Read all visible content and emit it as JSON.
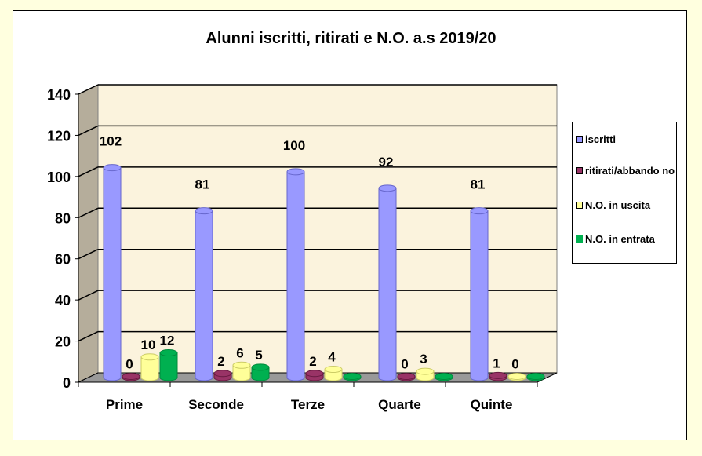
{
  "chart_data": {
    "type": "bar",
    "title": "Alunni  iscritti,  ritirati e N.O. a.s 2019/20",
    "categories": [
      "Prime",
      "Seconde",
      "Terze",
      "Quarte",
      "Quinte"
    ],
    "series": [
      {
        "name": "iscritti",
        "color": "#9999ff",
        "values": [
          102,
          81,
          100,
          92,
          81
        ],
        "labels": [
          "102",
          "81",
          "100",
          "92",
          "81"
        ]
      },
      {
        "name": "ritirati/abbandono",
        "color": "#993366",
        "values": [
          0,
          2,
          2,
          0,
          1
        ],
        "labels": [
          "0",
          "2",
          "2",
          "0",
          "1"
        ]
      },
      {
        "name": "N.O. in uscita",
        "color": "#ffff99",
        "values": [
          10,
          6,
          4,
          3,
          0
        ],
        "labels": [
          "10",
          "6",
          "4",
          "3",
          "0"
        ]
      },
      {
        "name": "N.O. in entrata",
        "color": "#00b050",
        "values": [
          12,
          5,
          0,
          0,
          0
        ],
        "labels": [
          "12",
          "5",
          "",
          "",
          ""
        ]
      }
    ],
    "xlabel": "",
    "ylabel": "",
    "ylim": [
      0,
      140
    ],
    "yticks": [
      "0",
      "20",
      "40",
      "60",
      "80",
      "100",
      "120",
      "140"
    ],
    "grid": true,
    "legend_position": "right",
    "style": "3d-cylinder"
  },
  "legend": {
    "items": [
      {
        "label": "iscritti",
        "color": "#9999ff"
      },
      {
        "label": "ritirati/abbando no",
        "color": "#993366"
      },
      {
        "label": "N.O. in uscita",
        "color": "#ffff99"
      },
      {
        "label": "N.O. in entrata",
        "color": "#00b050"
      }
    ]
  },
  "colors": {
    "page_bg": "#ffffdf",
    "wall": "#fbf3dd",
    "side_wall": "#b5ad9b",
    "floor": "#999999"
  }
}
